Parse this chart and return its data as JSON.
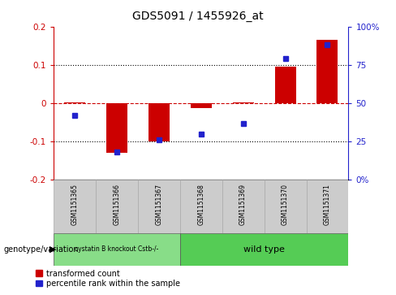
{
  "title": "GDS5091 / 1455926_at",
  "samples": [
    "GSM1151365",
    "GSM1151366",
    "GSM1151367",
    "GSM1151368",
    "GSM1151369",
    "GSM1151370",
    "GSM1151371"
  ],
  "red_values": [
    0.003,
    -0.13,
    -0.1,
    -0.012,
    0.002,
    0.095,
    0.165
  ],
  "blue_values_pct": [
    42,
    18,
    26,
    30,
    37,
    79,
    88
  ],
  "ylim_left": [
    -0.2,
    0.2
  ],
  "ylim_right": [
    0,
    100
  ],
  "yticks_left": [
    -0.2,
    -0.1,
    0.0,
    0.1,
    0.2
  ],
  "yticks_right": [
    0,
    25,
    50,
    75,
    100
  ],
  "red_color": "#cc0000",
  "blue_color": "#2222cc",
  "group1_label": "cystatin B knockout Cstb-/-",
  "group2_label": "wild type",
  "group1_color": "#88dd88",
  "group2_color": "#55cc55",
  "group1_samples": [
    0,
    1,
    2
  ],
  "group2_samples": [
    3,
    4,
    5,
    6
  ],
  "legend_red": "transformed count",
  "legend_blue": "percentile rank within the sample",
  "genotype_label": "genotype/variation",
  "bar_width": 0.5
}
